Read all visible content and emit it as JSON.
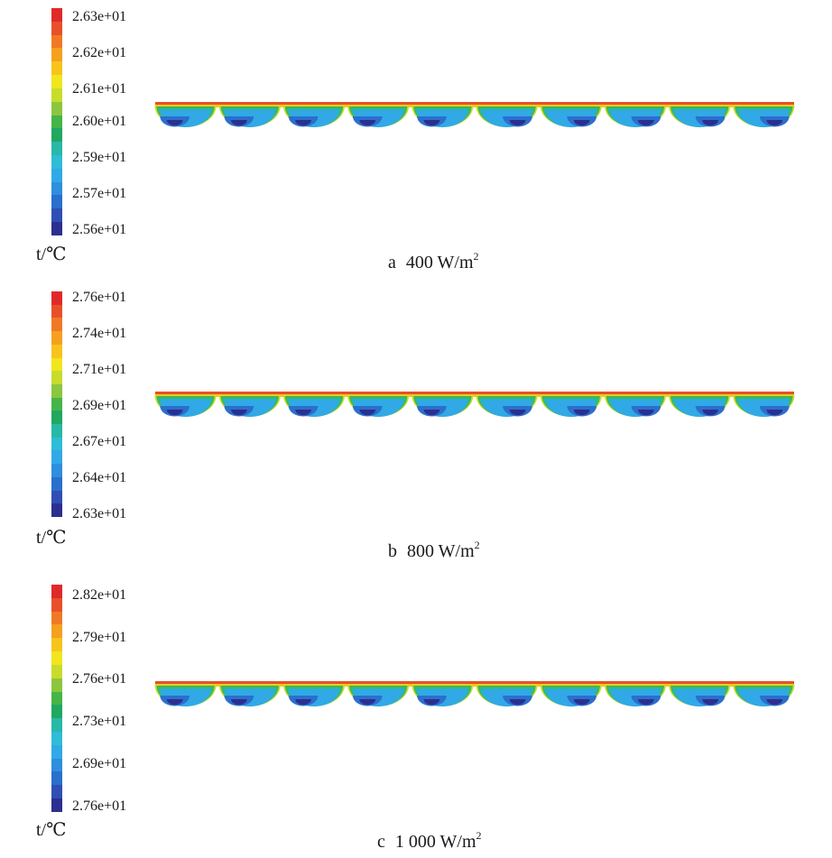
{
  "colormap": [
    "#2b2f8f",
    "#2f4fb4",
    "#2b6fcc",
    "#2d8fdd",
    "#31a9e6",
    "#2ebcd6",
    "#27b8a8",
    "#20a860",
    "#46b548",
    "#8cc63f",
    "#c8dc2c",
    "#f1e51d",
    "#f7c41c",
    "#f5a01f",
    "#f07a24",
    "#e8502a",
    "#e02a2a"
  ],
  "panels": [
    {
      "ticks": [
        "2.63e+01",
        "2.62e+01",
        "2.61e+01",
        "2.60e+01",
        "2.59e+01",
        "2.57e+01",
        "2.56e+01"
      ],
      "unit": "t/℃",
      "caption": {
        "letter": "a",
        "value": "400",
        "unit": "W/m",
        "sup": "2"
      }
    },
    {
      "ticks": [
        "2.76e+01",
        "2.74e+01",
        "2.71e+01",
        "2.69e+01",
        "2.67e+01",
        "2.64e+01",
        "2.63e+01"
      ],
      "unit": "t/℃",
      "caption": {
        "letter": "b",
        "value": "800",
        "unit": "W/m",
        "sup": "2"
      }
    },
    {
      "ticks": [
        "2.82e+01",
        "2.79e+01",
        "2.76e+01",
        "2.73e+01",
        "2.69e+01",
        "2.76e+01"
      ],
      "unit": "t/℃",
      "caption": {
        "letter": "c",
        "value": "1 000",
        "unit": "W/m",
        "sup": "2"
      }
    }
  ]
}
